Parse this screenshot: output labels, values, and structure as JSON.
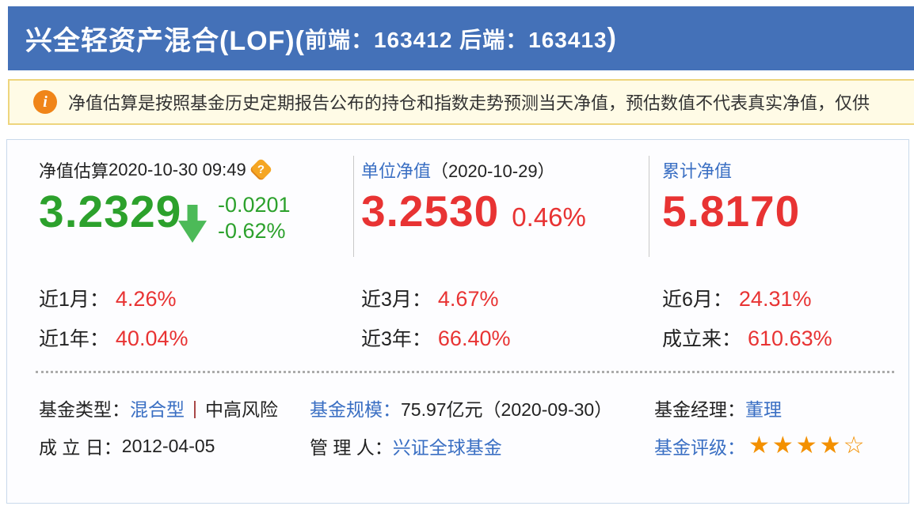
{
  "header": {
    "title_main": "兴全轻资产混合(LOF)(",
    "title_codes": "前端：163412  后端：163413",
    "title_close": ")"
  },
  "notice": {
    "text": "净值估算是按照基金历史定期报告公布的持仓和指数走势预测当天净值，预估数值不代表真实净值，仅供"
  },
  "estimate": {
    "label": "净值估算",
    "datetime": "2020-10-30 09:49",
    "help_glyph": "?",
    "value": "3.2329",
    "change_value": "-0.0201",
    "change_percent": "-0.62%",
    "direction": "down"
  },
  "unit_nav": {
    "label": "单位净值",
    "date": "（2020-10-29）",
    "value": "3.2530",
    "change_percent": "0.46%"
  },
  "accum_nav": {
    "label": "累计净值",
    "value": "5.8170"
  },
  "performance": [
    {
      "label": "近1月：",
      "value": "4.26%"
    },
    {
      "label": "近3月：",
      "value": "4.67%"
    },
    {
      "label": "近6月：",
      "value": "24.31%"
    },
    {
      "label": "近1年：",
      "value": "40.04%"
    },
    {
      "label": "近3年：",
      "value": "66.40%"
    },
    {
      "label": "成立来：",
      "value": "610.63%"
    }
  ],
  "details": {
    "type_label": "基金类型：",
    "type_value": "混合型",
    "type_sep": "|",
    "risk": "中高风险",
    "scale_label": "基金规模：",
    "scale_value": "75.97亿元（2020-09-30）",
    "manager_label": "基金经理：",
    "manager_value": "董理",
    "inception_label": "成 立 日：",
    "inception_value": "2012-04-05",
    "admin_label": "管 理 人：",
    "admin_value": "兴证全球基金",
    "rating_label": "基金评级：",
    "rating_filled_count": 4,
    "rating_total": 5,
    "rating_stars_filled": "★★★★",
    "rating_stars_empty": "☆"
  },
  "colors": {
    "header_bg": "#4471b8",
    "notice_bg": "#fffbe6",
    "notice_border": "#eed57e",
    "info_icon_orange": "#f08519",
    "link_blue": "#3a6fc3",
    "value_green": "#2ca12c",
    "arrow_green": "#4cba58",
    "value_red": "#e83333",
    "star_orange": "#f39000",
    "panel_border": "#c9d9eb"
  }
}
